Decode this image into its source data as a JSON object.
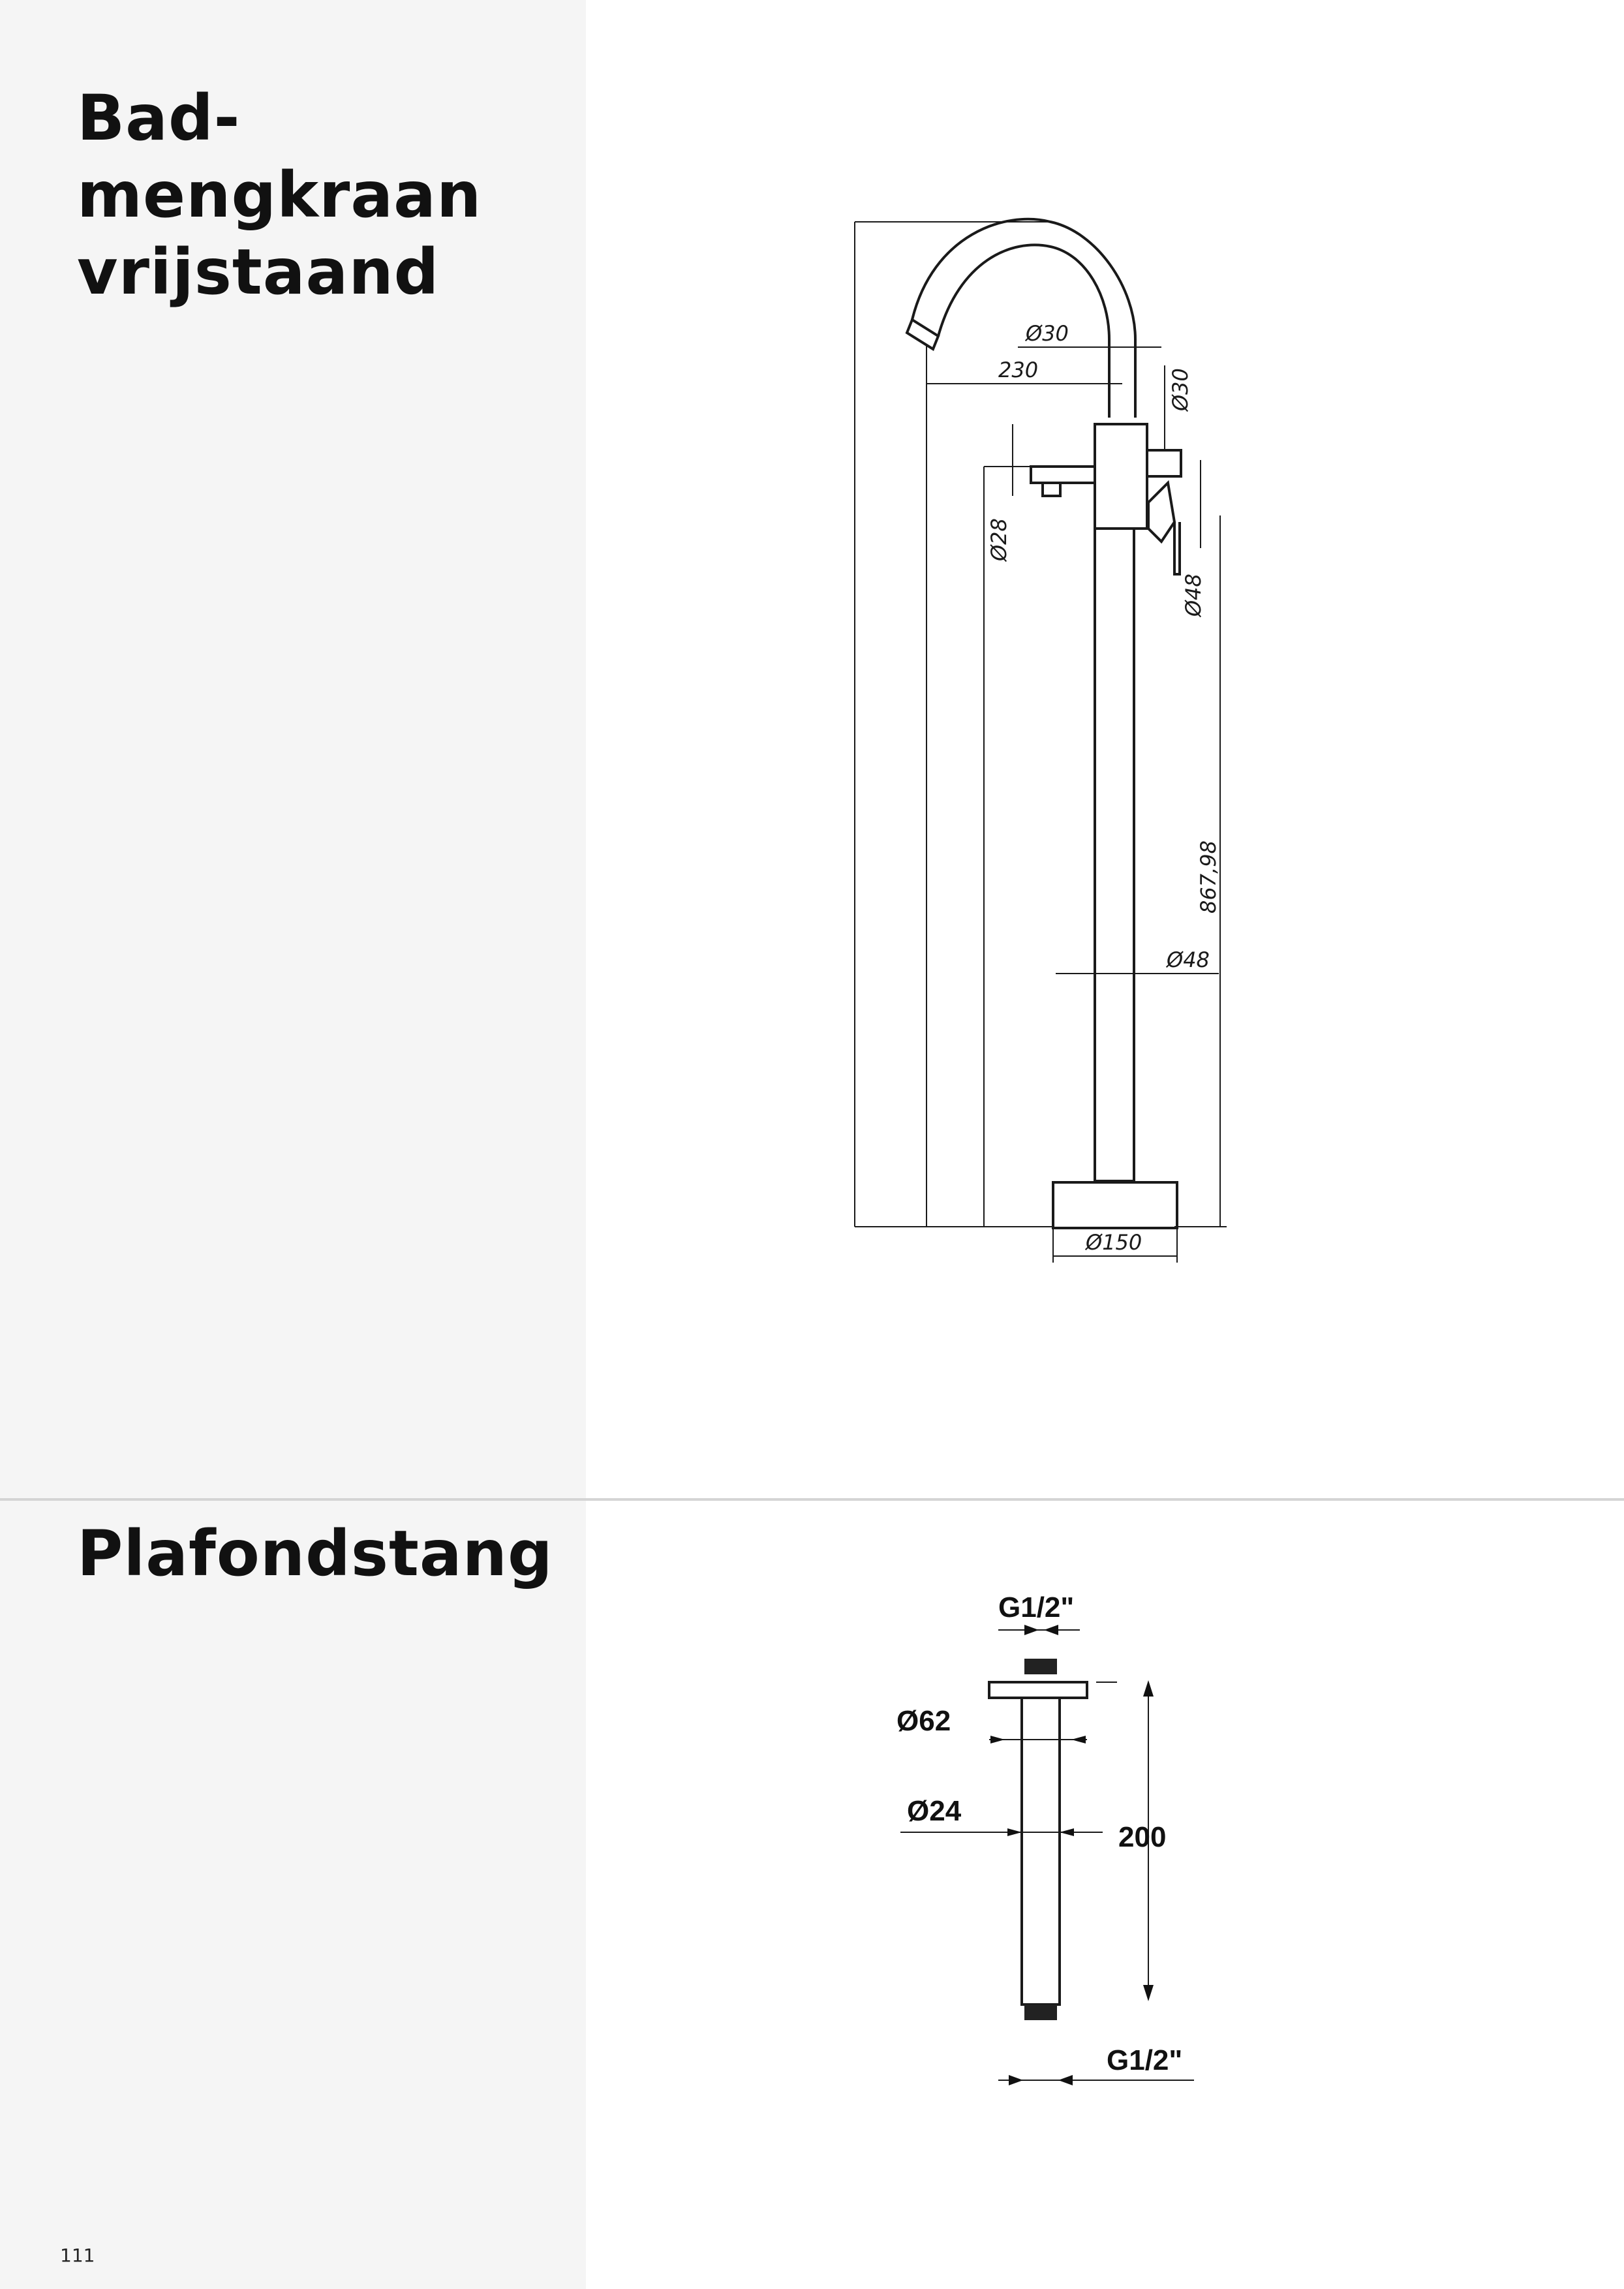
{
  "sections": [
    {
      "title_lines": [
        "Bad-",
        "mengkraan",
        "vrijstaand"
      ],
      "dimensions": {
        "spout_diameter": "Ø30",
        "spout_reach": "230",
        "body_diameter": "Ø30",
        "handle_diameter": "Ø28",
        "lever_diameter": "Ø48",
        "column_height": "867,98",
        "column_diameter": "Ø48",
        "base_diameter": "Ø150"
      }
    },
    {
      "title_lines": [
        "Plafondstang"
      ],
      "dimensions": {
        "thread_top": "G1/2\"",
        "flange_diameter": "Ø62",
        "pipe_diameter": "Ø24",
        "length": "200",
        "thread_bottom": "G1/2\""
      }
    }
  ],
  "page_number": "111",
  "colors": {
    "sidebar": "#f5f5f5",
    "divider": "#d4d4d4",
    "text": "#111111"
  }
}
